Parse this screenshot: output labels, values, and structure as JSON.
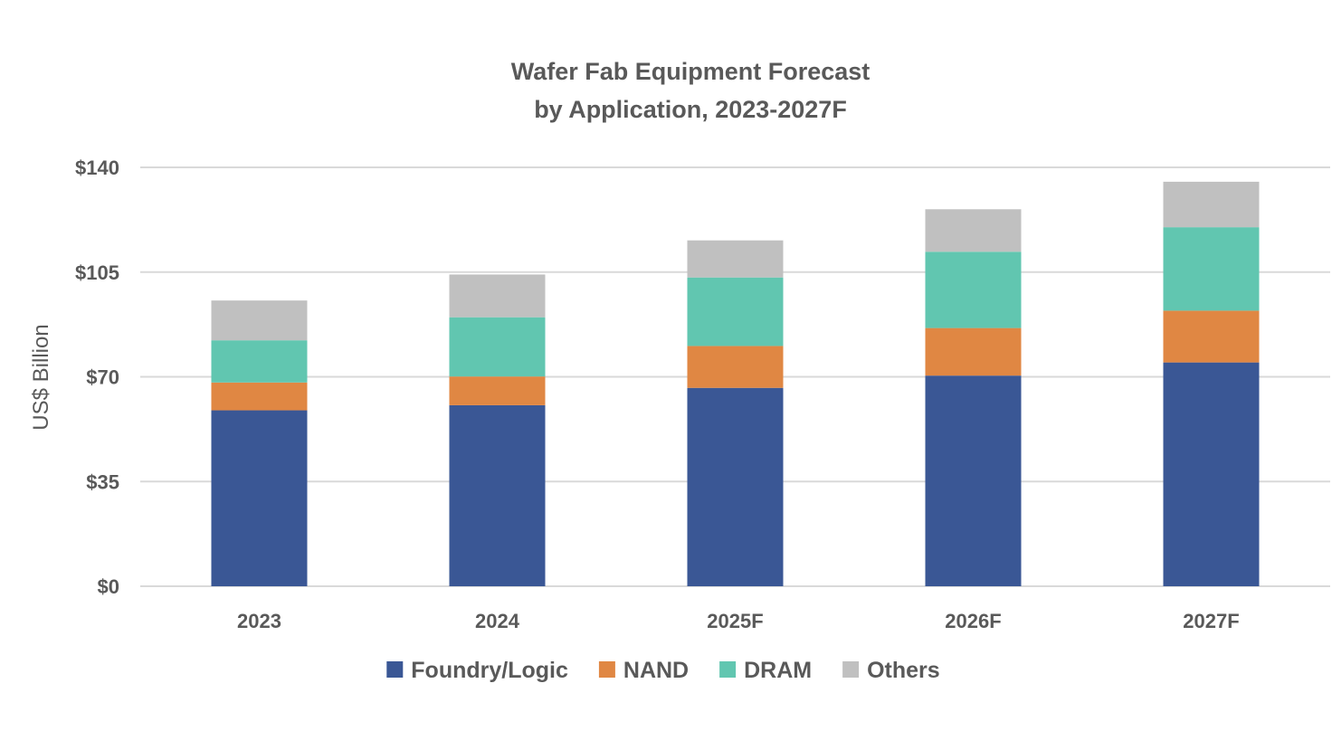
{
  "chart_data": {
    "type": "bar",
    "stacked": true,
    "title_lines": [
      "Wafer Fab Equipment Forecast",
      "by Application, 2023-2027F"
    ],
    "xlabel": "",
    "ylabel": "US$ Billion",
    "ylim": [
      0,
      140
    ],
    "yticks": [
      0,
      35,
      70,
      105,
      140
    ],
    "ytick_labels": [
      "$0",
      "$35",
      "$70",
      "$105",
      "$140"
    ],
    "categories": [
      "2023",
      "2024",
      "2025F",
      "2026F",
      "2027F"
    ],
    "series": [
      {
        "name": "Foundry/Logic",
        "color": "#3a5795",
        "values": [
          58.8,
          60.5,
          66.3,
          70.4,
          74.8
        ]
      },
      {
        "name": "NAND",
        "color": "#e08743",
        "values": [
          9.3,
          9.6,
          14.0,
          15.9,
          17.3
        ]
      },
      {
        "name": "DRAM",
        "color": "#61c6b0",
        "values": [
          14.1,
          19.8,
          22.9,
          25.5,
          27.9
        ]
      },
      {
        "name": "Others",
        "color": "#c0c0c0",
        "values": [
          13.3,
          14.3,
          12.4,
          14.2,
          15.2
        ]
      }
    ],
    "grid": true,
    "legend_position": "bottom"
  }
}
